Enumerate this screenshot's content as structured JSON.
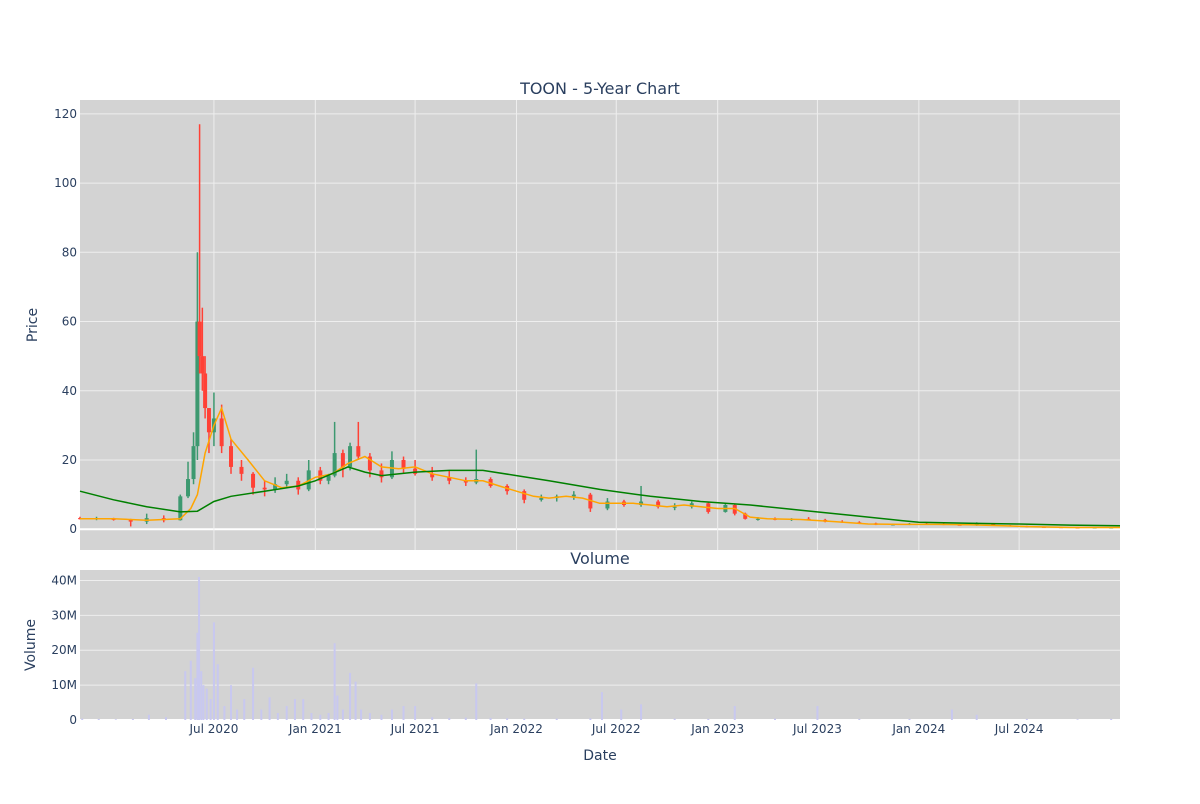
{
  "chart_data": [
    {
      "type": "candlestick",
      "title": "TOON - 5-Year Chart",
      "ylabel": "Price",
      "ylim": [
        -6,
        124
      ],
      "xlim": [
        "2019-11-01",
        "2024-12-31"
      ],
      "grid": true,
      "y_ticks": [
        0,
        20,
        40,
        60,
        80,
        100,
        120
      ],
      "x_ticks": [
        "Jul 2020",
        "Jan 2021",
        "Jul 2021",
        "Jan 2022",
        "Jul 2022",
        "Jan 2023",
        "Jul 2023",
        "Jan 2024",
        "Jul 2024"
      ],
      "up_color": "#3d9970",
      "down_color": "#ff4136",
      "ohlc": [
        [
          "2019-11-01",
          3.2,
          3.6,
          2.8,
          3.0
        ],
        [
          "2019-12-01",
          3.0,
          3.6,
          2.6,
          3.1
        ],
        [
          "2020-01-01",
          3.1,
          3.3,
          2.5,
          2.7
        ],
        [
          "2020-02-01",
          2.7,
          3.0,
          0.8,
          2.2
        ],
        [
          "2020-03-01",
          2.2,
          4.5,
          1.5,
          3.2
        ],
        [
          "2020-04-01",
          3.2,
          4.0,
          2.0,
          2.6
        ],
        [
          "2020-05-01",
          2.6,
          10.0,
          2.5,
          9.5
        ],
        [
          "2020-05-15",
          9.5,
          19.5,
          9.0,
          14.5
        ],
        [
          "2020-05-25",
          14.5,
          28.0,
          13.0,
          24.0
        ],
        [
          "2020-06-01",
          24.0,
          80.0,
          20.0,
          60.0
        ],
        [
          "2020-06-05",
          60.0,
          117.0,
          45.0,
          50.0
        ],
        [
          "2020-06-10",
          50.0,
          64.0,
          40.0,
          45.0
        ],
        [
          "2020-06-15",
          45.0,
          50.0,
          32.0,
          35.0
        ],
        [
          "2020-06-22",
          35.0,
          35.0,
          22.0,
          28.0
        ],
        [
          "2020-07-01",
          28.0,
          39.5,
          24.0,
          32.0
        ],
        [
          "2020-07-15",
          32.0,
          36.0,
          22.0,
          24.0
        ],
        [
          "2020-08-01",
          24.0,
          26.0,
          16.0,
          18.0
        ],
        [
          "2020-08-20",
          18.0,
          20.0,
          14.0,
          16.0
        ],
        [
          "2020-09-10",
          16.0,
          16.5,
          10.0,
          12.0
        ],
        [
          "2020-10-01",
          12.0,
          14.0,
          9.5,
          11.5
        ],
        [
          "2020-10-20",
          11.5,
          15.0,
          10.5,
          13.0
        ],
        [
          "2020-11-10",
          13.0,
          16.0,
          12.0,
          14.0
        ],
        [
          "2020-12-01",
          14.0,
          15.0,
          10.0,
          11.5
        ],
        [
          "2020-12-20",
          11.5,
          20.0,
          11.0,
          17.0
        ],
        [
          "2021-01-10",
          17.0,
          18.0,
          13.0,
          14.0
        ],
        [
          "2021-01-25",
          14.0,
          16.0,
          13.0,
          15.5
        ],
        [
          "2021-02-05",
          15.5,
          31.0,
          15.0,
          22.0
        ],
        [
          "2021-02-20",
          22.0,
          23.0,
          15.0,
          18.0
        ],
        [
          "2021-03-05",
          18.0,
          25.0,
          17.0,
          24.0
        ],
        [
          "2021-03-20",
          24.0,
          31.0,
          20.0,
          21.0
        ],
        [
          "2021-04-10",
          21.0,
          22.0,
          15.0,
          17.0
        ],
        [
          "2021-05-01",
          17.0,
          19.0,
          13.5,
          15.0
        ],
        [
          "2021-05-20",
          15.0,
          22.5,
          14.5,
          20.0
        ],
        [
          "2021-06-10",
          20.0,
          21.0,
          16.0,
          17.5
        ],
        [
          "2021-07-01",
          17.5,
          20.0,
          15.5,
          16.0
        ],
        [
          "2021-08-01",
          16.0,
          18.0,
          14.0,
          15.0
        ],
        [
          "2021-09-01",
          15.0,
          17.0,
          13.0,
          14.0
        ],
        [
          "2021-10-01",
          14.0,
          15.0,
          12.5,
          13.5
        ],
        [
          "2021-10-20",
          13.5,
          23.0,
          13.0,
          14.5
        ],
        [
          "2021-11-15",
          14.5,
          15.0,
          12.0,
          12.5
        ],
        [
          "2021-12-15",
          12.5,
          13.0,
          10.0,
          11.0
        ],
        [
          "2022-01-15",
          11.0,
          11.5,
          7.5,
          8.5
        ],
        [
          "2022-02-15",
          8.5,
          10.0,
          8.0,
          9.0
        ],
        [
          "2022-03-15",
          9.0,
          10.0,
          8.0,
          9.5
        ],
        [
          "2022-04-15",
          9.5,
          11.0,
          8.5,
          10.0
        ],
        [
          "2022-05-15",
          10.0,
          10.5,
          5.0,
          6.0
        ],
        [
          "2022-06-15",
          6.0,
          9.0,
          5.5,
          8.0
        ],
        [
          "2022-07-15",
          8.0,
          8.5,
          6.5,
          7.0
        ],
        [
          "2022-08-15",
          7.0,
          12.5,
          6.5,
          8.0
        ],
        [
          "2022-09-15",
          8.0,
          8.5,
          6.0,
          6.5
        ],
        [
          "2022-10-15",
          6.5,
          7.5,
          5.5,
          6.5
        ],
        [
          "2022-11-15",
          6.5,
          8.0,
          6.0,
          7.5
        ],
        [
          "2022-12-15",
          7.5,
          8.0,
          4.5,
          5.0
        ],
        [
          "2023-01-15",
          5.0,
          7.5,
          4.8,
          7.0
        ],
        [
          "2023-02-01",
          7.0,
          7.2,
          4.0,
          4.5
        ],
        [
          "2023-02-20",
          4.5,
          4.8,
          2.8,
          3.0
        ],
        [
          "2023-03-15",
          3.0,
          3.5,
          2.5,
          3.0
        ],
        [
          "2023-04-15",
          3.0,
          3.4,
          2.6,
          2.8
        ],
        [
          "2023-05-15",
          2.8,
          3.2,
          2.4,
          3.0
        ],
        [
          "2023-06-15",
          3.0,
          3.5,
          2.6,
          2.7
        ],
        [
          "2023-07-15",
          2.7,
          3.0,
          2.0,
          2.2
        ],
        [
          "2023-08-15",
          2.2,
          2.6,
          1.8,
          2.0
        ],
        [
          "2023-09-15",
          2.0,
          2.3,
          1.5,
          1.7
        ],
        [
          "2023-10-15",
          1.7,
          1.9,
          1.2,
          1.3
        ],
        [
          "2023-11-15",
          1.3,
          1.6,
          1.1,
          1.4
        ],
        [
          "2023-12-15",
          1.4,
          1.8,
          1.2,
          1.6
        ],
        [
          "2024-01-15",
          1.6,
          1.8,
          1.3,
          1.5
        ],
        [
          "2024-02-15",
          1.5,
          1.7,
          1.2,
          1.3
        ],
        [
          "2024-03-15",
          1.3,
          1.5,
          1.1,
          1.2
        ],
        [
          "2024-04-15",
          1.2,
          2.0,
          1.0,
          1.6
        ],
        [
          "2024-05-15",
          1.6,
          1.7,
          1.0,
          1.1
        ],
        [
          "2024-06-15",
          1.1,
          1.2,
          0.8,
          0.9
        ],
        [
          "2024-07-15",
          0.9,
          1.0,
          0.6,
          0.7
        ],
        [
          "2024-08-15",
          0.7,
          0.8,
          0.5,
          0.6
        ],
        [
          "2024-09-15",
          0.6,
          0.7,
          0.4,
          0.5
        ],
        [
          "2024-10-15",
          0.5,
          0.6,
          0.35,
          0.45
        ],
        [
          "2024-11-15",
          0.45,
          0.6,
          0.35,
          0.5
        ],
        [
          "2024-12-15",
          0.5,
          0.6,
          0.4,
          0.5
        ]
      ],
      "series": [
        {
          "color": "#ffa500",
          "points": [
            [
              "2019-11-01",
              3.0
            ],
            [
              "2020-01-01",
              3.0
            ],
            [
              "2020-03-01",
              2.6
            ],
            [
              "2020-05-01",
              3.0
            ],
            [
              "2020-05-20",
              6.0
            ],
            [
              "2020-06-01",
              10.0
            ],
            [
              "2020-06-15",
              22.0
            ],
            [
              "2020-07-01",
              30.0
            ],
            [
              "2020-07-15",
              35.0
            ],
            [
              "2020-08-01",
              26.0
            ],
            [
              "2020-09-01",
              20.0
            ],
            [
              "2020-10-01",
              14.0
            ],
            [
              "2020-11-01",
              12.0
            ],
            [
              "2020-12-01",
              12.5
            ],
            [
              "2021-01-01",
              15.0
            ],
            [
              "2021-02-01",
              16.0
            ],
            [
              "2021-03-01",
              19.0
            ],
            [
              "2021-04-01",
              21.0
            ],
            [
              "2021-05-01",
              18.0
            ],
            [
              "2021-06-01",
              17.5
            ],
            [
              "2021-07-01",
              18.0
            ],
            [
              "2021-08-01",
              16.0
            ],
            [
              "2021-09-01",
              15.0
            ],
            [
              "2021-10-01",
              14.0
            ],
            [
              "2021-11-01",
              14.0
            ],
            [
              "2021-12-01",
              12.5
            ],
            [
              "2022-01-01",
              11.0
            ],
            [
              "2022-02-01",
              9.5
            ],
            [
              "2022-03-01",
              9.0
            ],
            [
              "2022-04-01",
              9.5
            ],
            [
              "2022-05-01",
              9.0
            ],
            [
              "2022-06-01",
              7.5
            ],
            [
              "2022-07-01",
              7.5
            ],
            [
              "2022-08-01",
              7.5
            ],
            [
              "2022-09-01",
              7.0
            ],
            [
              "2022-10-01",
              6.5
            ],
            [
              "2022-11-01",
              7.0
            ],
            [
              "2022-12-01",
              6.5
            ],
            [
              "2023-01-01",
              6.0
            ],
            [
              "2023-02-01",
              6.0
            ],
            [
              "2023-03-01",
              3.5
            ],
            [
              "2023-04-01",
              3.0
            ],
            [
              "2023-06-01",
              2.8
            ],
            [
              "2023-08-01",
              2.2
            ],
            [
              "2023-10-01",
              1.5
            ],
            [
              "2023-12-01",
              1.4
            ],
            [
              "2024-02-01",
              1.4
            ],
            [
              "2024-04-01",
              1.3
            ],
            [
              "2024-06-01",
              1.0
            ],
            [
              "2024-08-01",
              0.7
            ],
            [
              "2024-10-01",
              0.5
            ],
            [
              "2024-12-31",
              0.5
            ]
          ]
        },
        {
          "color": "#008000",
          "points": [
            [
              "2019-11-01",
              11.0
            ],
            [
              "2020-01-01",
              8.5
            ],
            [
              "2020-03-01",
              6.5
            ],
            [
              "2020-05-01",
              5.0
            ],
            [
              "2020-06-01",
              5.2
            ],
            [
              "2020-07-01",
              8.0
            ],
            [
              "2020-08-01",
              9.5
            ],
            [
              "2020-10-01",
              11.0
            ],
            [
              "2020-12-01",
              12.5
            ],
            [
              "2021-01-01",
              14.0
            ],
            [
              "2021-03-01",
              18.0
            ],
            [
              "2021-04-01",
              16.5
            ],
            [
              "2021-05-01",
              15.5
            ],
            [
              "2021-07-01",
              16.5
            ],
            [
              "2021-09-01",
              17.0
            ],
            [
              "2021-11-01",
              17.0
            ],
            [
              "2022-01-01",
              15.5
            ],
            [
              "2022-03-01",
              14.0
            ],
            [
              "2022-06-01",
              11.5
            ],
            [
              "2022-09-01",
              9.5
            ],
            [
              "2022-12-01",
              8.0
            ],
            [
              "2023-03-01",
              7.0
            ],
            [
              "2023-06-01",
              5.5
            ],
            [
              "2023-09-01",
              4.0
            ],
            [
              "2023-12-01",
              2.5
            ],
            [
              "2024-01-01",
              2.0
            ],
            [
              "2024-04-01",
              1.7
            ],
            [
              "2024-07-01",
              1.5
            ],
            [
              "2024-10-01",
              1.2
            ],
            [
              "2024-12-31",
              1.0
            ]
          ]
        }
      ]
    },
    {
      "type": "bar",
      "title": "Volume",
      "xlabel": "Date",
      "ylabel": "Volume",
      "ylim": [
        0,
        43000000
      ],
      "grid": true,
      "y_ticks": [
        0,
        10000000,
        20000000,
        30000000,
        40000000
      ],
      "y_tick_labels": [
        "0",
        "10M",
        "20M",
        "30M",
        "40M"
      ],
      "x_ticks": [
        "Jul 2020",
        "Jan 2021",
        "Jul 2021",
        "Jan 2022",
        "Jul 2022",
        "Jan 2023",
        "Jul 2023",
        "Jan 2024",
        "Jul 2024"
      ],
      "bar_color": "#c8c8f0",
      "x": [
        "2019-11-05",
        "2019-12-05",
        "2020-01-05",
        "2020-02-05",
        "2020-03-05",
        "2020-04-05",
        "2020-05-10",
        "2020-05-20",
        "2020-05-28",
        "2020-06-01",
        "2020-06-04",
        "2020-06-08",
        "2020-06-12",
        "2020-06-18",
        "2020-06-25",
        "2020-07-01",
        "2020-07-08",
        "2020-07-20",
        "2020-08-01",
        "2020-08-12",
        "2020-08-25",
        "2020-09-10",
        "2020-09-25",
        "2020-10-10",
        "2020-10-25",
        "2020-11-10",
        "2020-11-25",
        "2020-12-10",
        "2020-12-25",
        "2021-01-10",
        "2021-01-25",
        "2021-02-05",
        "2021-02-10",
        "2021-02-20",
        "2021-03-05",
        "2021-03-15",
        "2021-03-25",
        "2021-04-10",
        "2021-05-01",
        "2021-05-20",
        "2021-06-10",
        "2021-07-01",
        "2021-08-01",
        "2021-09-01",
        "2021-10-01",
        "2021-10-20",
        "2021-11-15",
        "2021-12-15",
        "2022-01-15",
        "2022-03-15",
        "2022-05-15",
        "2022-06-05",
        "2022-07-10",
        "2022-08-15",
        "2022-10-15",
        "2022-12-15",
        "2023-02-01",
        "2023-04-15",
        "2023-07-01",
        "2023-09-15",
        "2023-12-15",
        "2024-03-01",
        "2024-04-15",
        "2024-07-15",
        "2024-10-15",
        "2024-12-15"
      ],
      "values": [
        400000,
        300000,
        200000,
        300000,
        1500000,
        800000,
        14000000,
        17000000,
        12000000,
        25000000,
        41000000,
        14000000,
        10000000,
        9000000,
        6000000,
        28000000,
        16000000,
        4000000,
        10000000,
        3000000,
        6000000,
        15000000,
        3000000,
        6500000,
        2000000,
        4000000,
        6000000,
        6000000,
        2000000,
        1500000,
        2000000,
        22000000,
        7000000,
        3000000,
        13500000,
        11000000,
        3000000,
        2000000,
        1500000,
        3000000,
        4000000,
        4000000,
        800000,
        600000,
        700000,
        10500000,
        600000,
        500000,
        400000,
        400000,
        500000,
        8000000,
        3000000,
        4500000,
        400000,
        300000,
        4000000,
        400000,
        4000000,
        300000,
        300000,
        3000000,
        1500000,
        300000,
        200000,
        300000
      ]
    }
  ]
}
